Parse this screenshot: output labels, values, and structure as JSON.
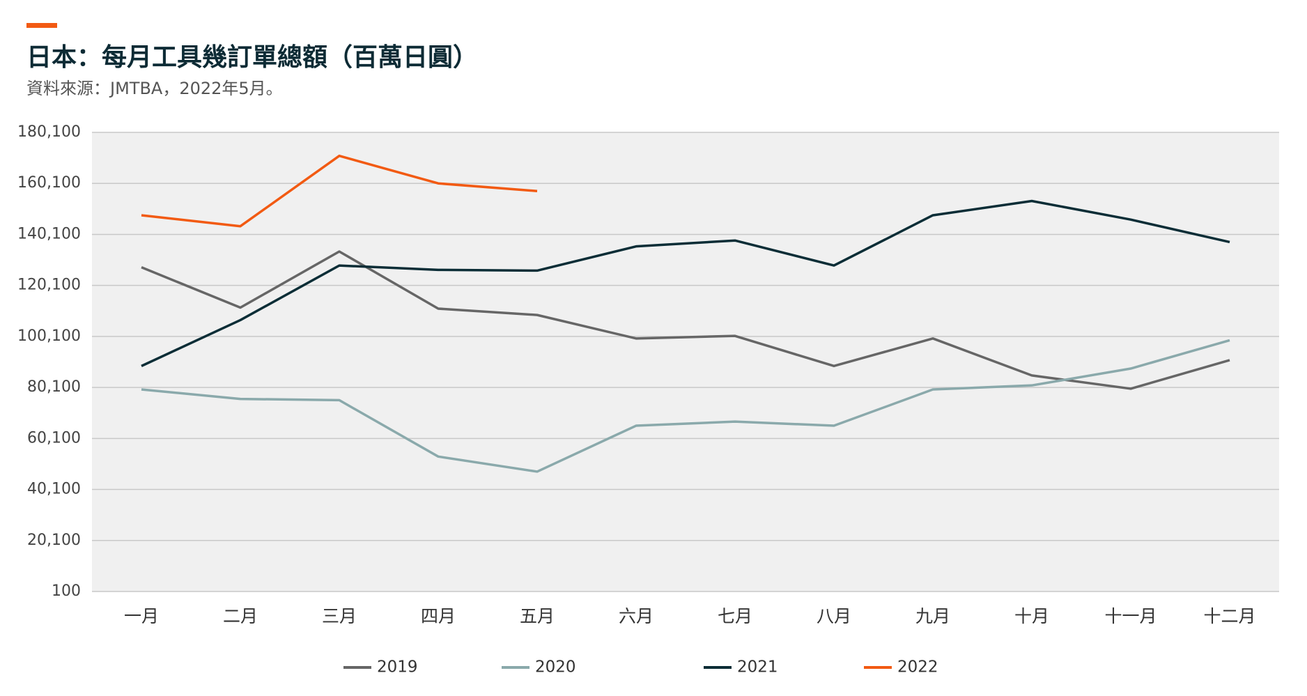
{
  "chart_data": {
    "type": "line",
    "title": "日本：每月工具幾訂單總額（百萬日圓）",
    "subtitle": "資料來源：JMTBA，2022年5月。",
    "categories": [
      "一月",
      "二月",
      "三月",
      "四月",
      "五月",
      "六月",
      "七月",
      "八月",
      "九月",
      "十月",
      "十一月",
      "十二月"
    ],
    "series": [
      {
        "name": "2019",
        "color": "#666666",
        "values": [
          127200,
          111400,
          133400,
          111000,
          108500,
          99300,
          100300,
          88500,
          99300,
          84800,
          79600,
          90800
        ]
      },
      {
        "name": "2020",
        "color": "#8aa9ab",
        "values": [
          79300,
          75600,
          75100,
          53000,
          47100,
          65100,
          66700,
          65100,
          79300,
          80900,
          87500,
          98600
        ]
      },
      {
        "name": "2021",
        "color": "#0b2d36",
        "values": [
          88500,
          106500,
          127900,
          126200,
          125900,
          135400,
          137700,
          127900,
          147600,
          153200,
          145900,
          137100
        ]
      },
      {
        "name": "2022",
        "color": "#f25a12",
        "values": [
          147600,
          143300,
          170900,
          160100,
          157100,
          null,
          null,
          null,
          null,
          null,
          null,
          null
        ]
      }
    ],
    "ylim": [
      100,
      180100
    ],
    "yticks": [
      100,
      {
        "value": 20100,
        "label": "20,100"
      },
      {
        "value": 40100,
        "label": "40,100"
      },
      {
        "value": 60100,
        "label": "60,100"
      },
      {
        "value": 80100,
        "label": "80,100"
      },
      {
        "value": 100100,
        "label": "100,100"
      },
      {
        "value": 120100,
        "label": "120,100"
      },
      {
        "value": 140100,
        "label": "140,100"
      },
      {
        "value": 160100,
        "label": "160,100"
      },
      {
        "value": 180100,
        "label": "180,100"
      }
    ],
    "grid": true,
    "legend": "bottom"
  }
}
